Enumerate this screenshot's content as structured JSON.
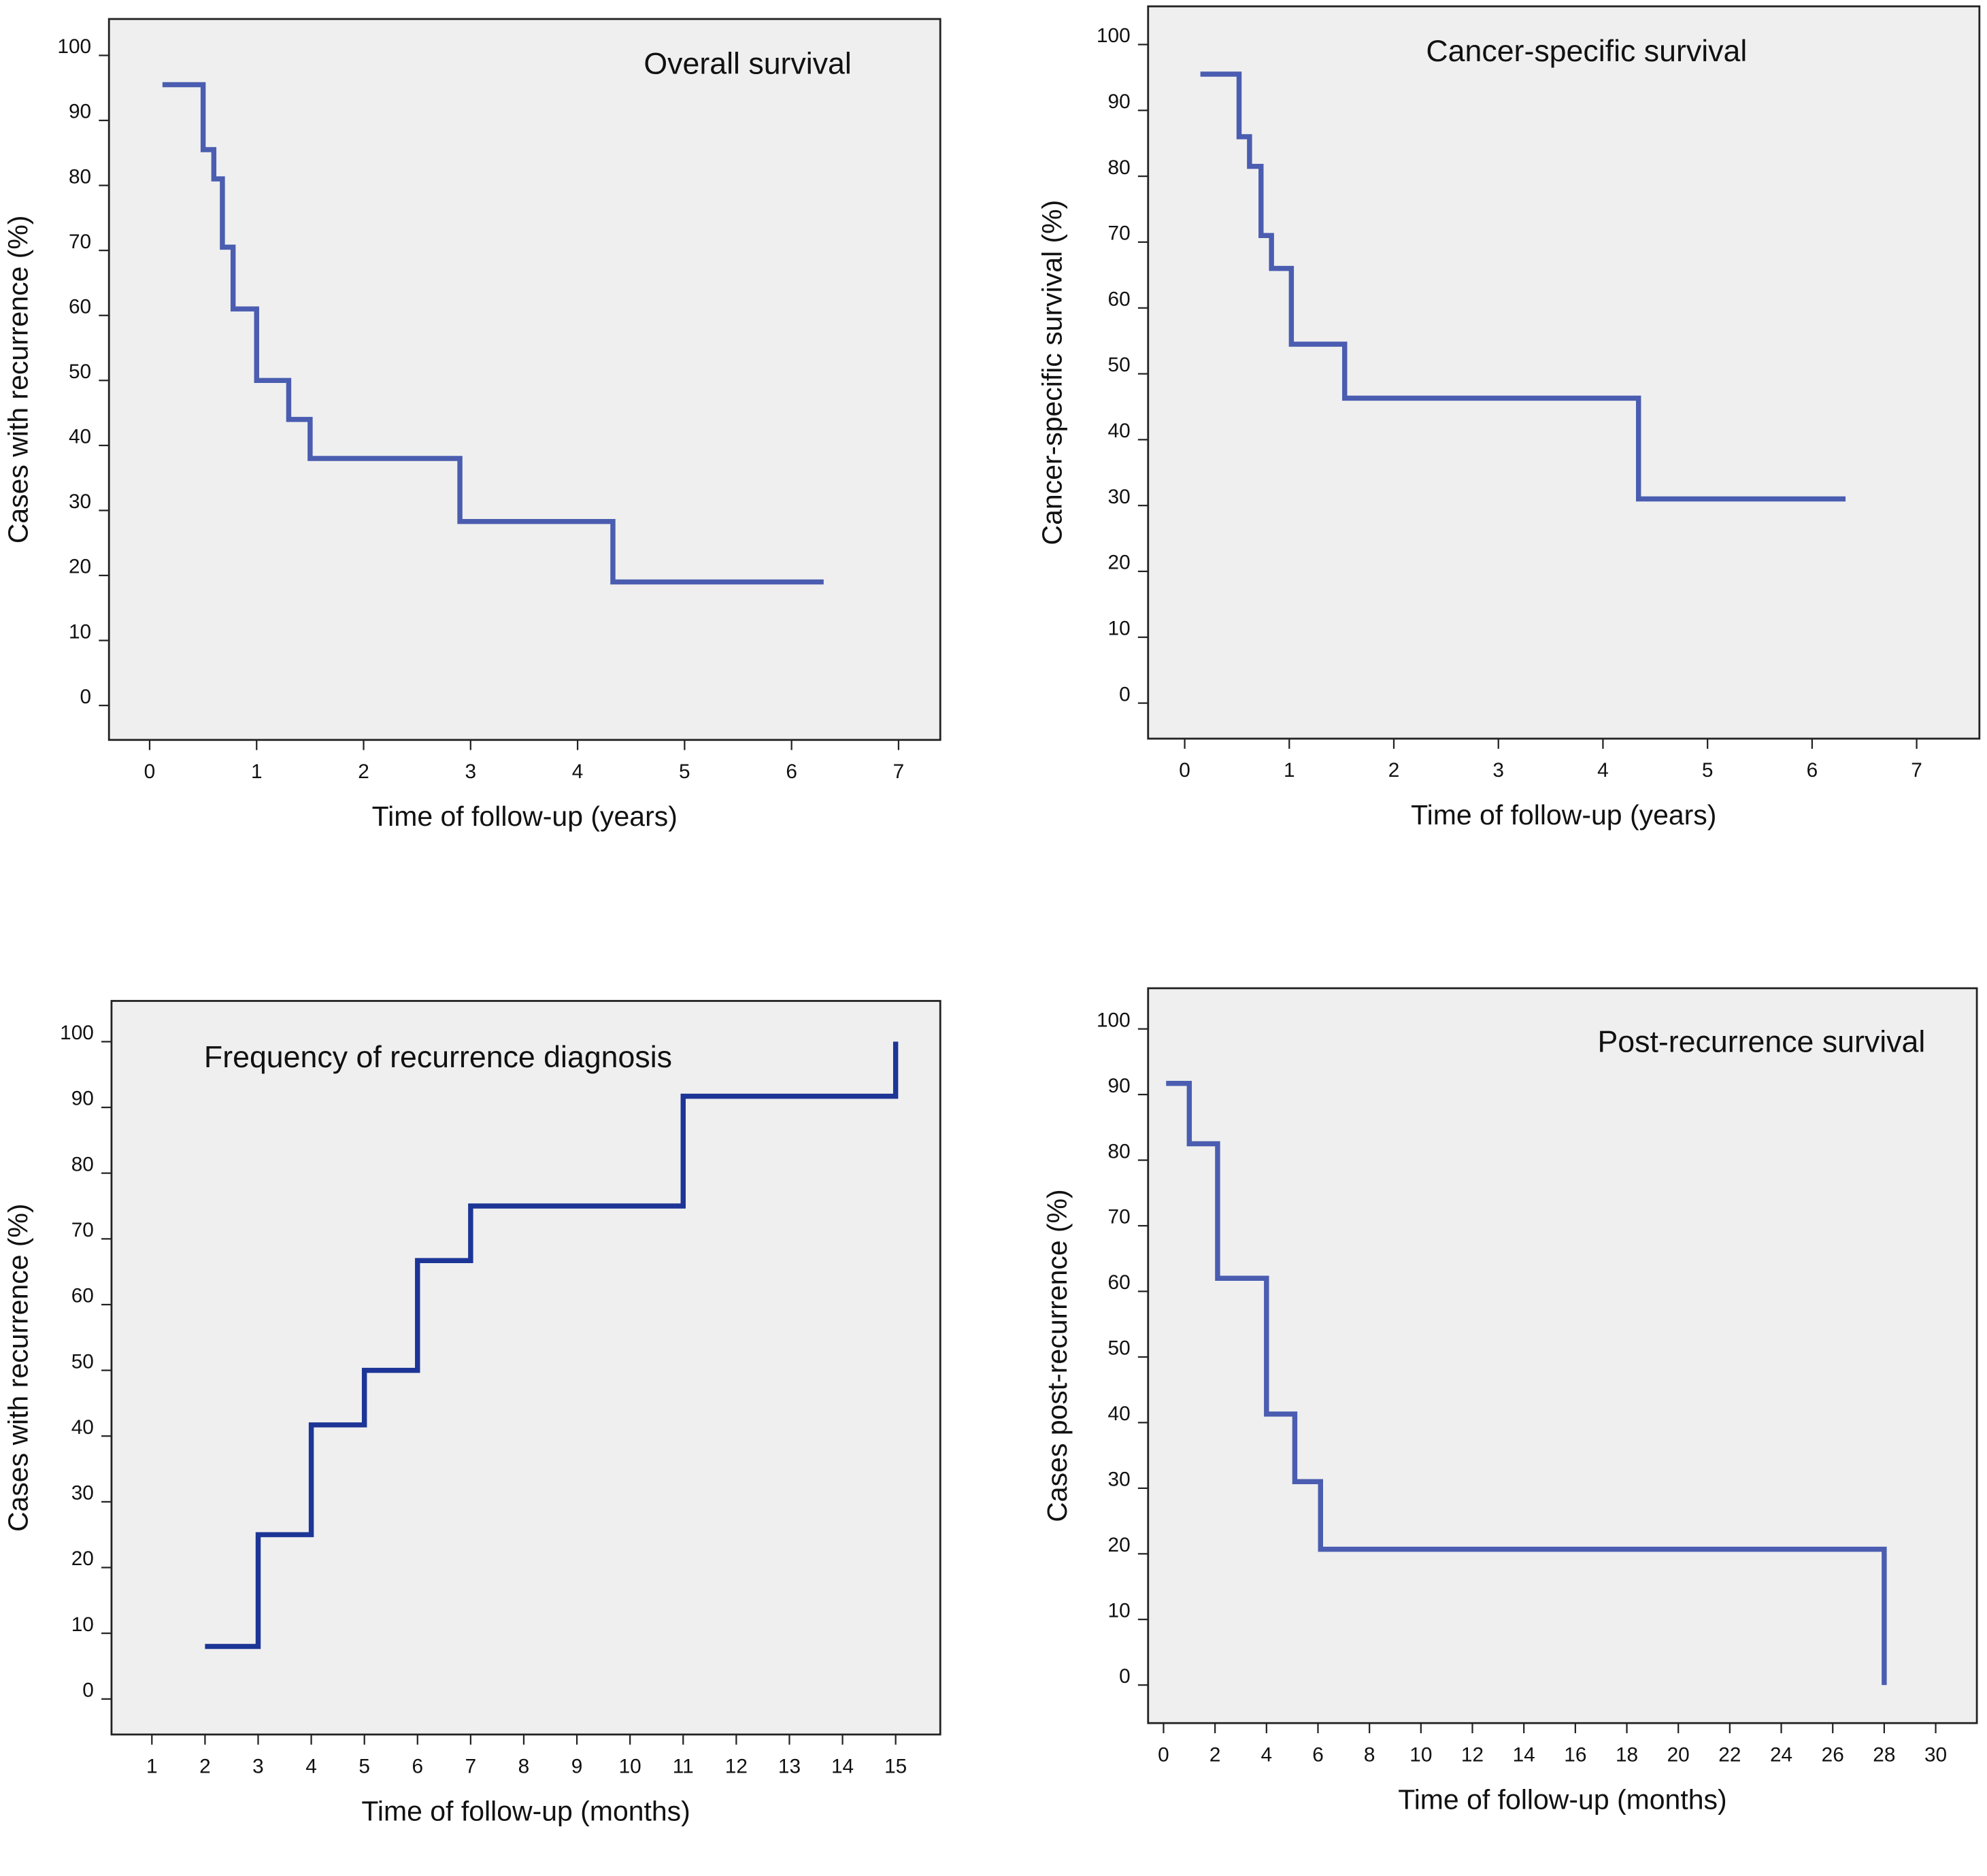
{
  "chart_data": [
    {
      "type": "line",
      "step": "post",
      "title": "Overall survival",
      "xlabel": "Time of follow-up (years)",
      "ylabel": "Cases with recurrence (%)",
      "x": [
        0.12,
        0.5,
        0.6,
        0.68,
        0.78,
        1.0,
        1.3,
        1.5,
        2.9,
        4.33,
        6.3
      ],
      "values": [
        95.5,
        85.5,
        81,
        70.5,
        61,
        50,
        44,
        38,
        28.3,
        19,
        19
      ],
      "color": "#4a5db0",
      "xlim": [
        -0.38,
        7.39
      ],
      "ylim": [
        -5.3,
        105.6
      ],
      "xticks": [
        0,
        1,
        2,
        3,
        4,
        5,
        6,
        7
      ],
      "yticks": [
        0,
        10,
        20,
        30,
        40,
        50,
        60,
        70,
        80,
        90,
        100
      ]
    },
    {
      "type": "line",
      "step": "post",
      "title": "Cancer-specific survival",
      "xlabel": "Time of follow-up (years)",
      "ylabel": "Cancer-specific survival (%)",
      "x": [
        0.15,
        0.52,
        0.62,
        0.73,
        0.83,
        1.02,
        1.53,
        4.34,
        6.32
      ],
      "values": [
        95.5,
        86,
        81.5,
        71,
        66,
        54.5,
        46.3,
        31,
        31
      ],
      "color": "#4a5db0",
      "xlim": [
        -0.35,
        7.6
      ],
      "ylim": [
        -5.4,
        105.8
      ],
      "xticks": [
        0,
        1,
        2,
        3,
        4,
        5,
        6,
        7
      ],
      "yticks": [
        0,
        10,
        20,
        30,
        40,
        50,
        60,
        70,
        80,
        90,
        100
      ]
    },
    {
      "type": "line",
      "step": "post",
      "title": "Frequency of recurrence diagnosis",
      "xlabel": "Time of follow-up (months)",
      "ylabel": "Cases with recurrence (%)",
      "x": [
        2,
        3,
        4,
        5,
        6,
        7,
        11,
        15
      ],
      "values": [
        8,
        25,
        41.7,
        50,
        66.7,
        75,
        91.7,
        100
      ],
      "color": "#1c3596",
      "xlim": [
        0.24,
        15.84
      ],
      "ylim": [
        -5.4,
        106.2
      ],
      "xticks": [
        1,
        2,
        3,
        4,
        5,
        6,
        7,
        8,
        9,
        10,
        11,
        12,
        13,
        14,
        15
      ],
      "yticks": [
        0,
        10,
        20,
        30,
        40,
        50,
        60,
        70,
        80,
        90,
        100
      ]
    },
    {
      "type": "line",
      "step": "post",
      "title": "Post-recurrence survival",
      "xlabel": "Time of follow-up (months)",
      "ylabel": "Cases post-recurrence (%)",
      "x": [
        0.1,
        1.0,
        2.1,
        4.0,
        5.1,
        6.1,
        28
      ],
      "values": [
        91.7,
        82.5,
        62,
        41.3,
        31,
        20.7,
        0
      ],
      "color": "#4a5db0",
      "xlim": [
        -0.6,
        31.6
      ],
      "ylim": [
        -5.8,
        106.2
      ],
      "xticks": [
        0,
        2,
        4,
        6,
        8,
        10,
        12,
        14,
        16,
        18,
        20,
        22,
        24,
        26,
        28,
        30
      ],
      "yticks": [
        0,
        10,
        20,
        30,
        40,
        50,
        60,
        70,
        80,
        90,
        100
      ]
    }
  ]
}
